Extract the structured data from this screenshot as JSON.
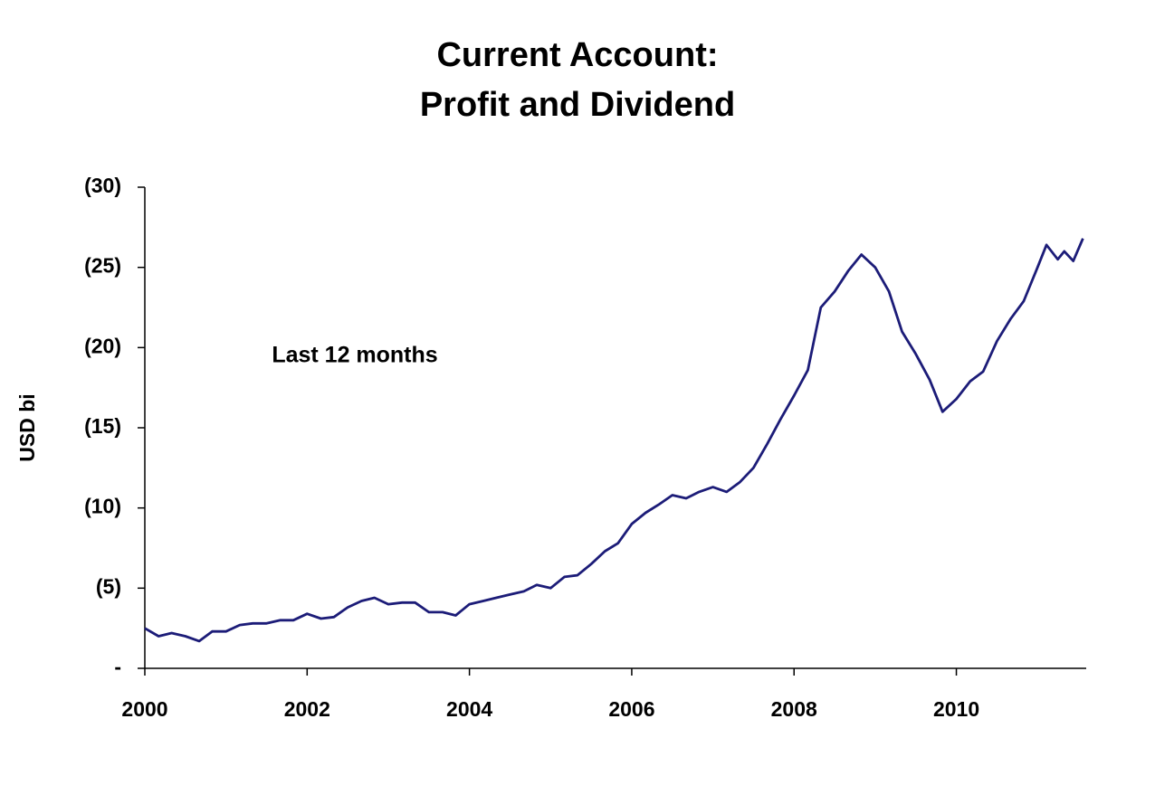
{
  "chart_data": {
    "type": "line",
    "title": "Current Account:",
    "subtitle": "Profit and Dividend",
    "y_label": "USD bi",
    "annotation": "Last 12 months",
    "x": [
      2000,
      2000.17,
      2000.33,
      2000.5,
      2000.67,
      2000.83,
      2001,
      2001.17,
      2001.33,
      2001.5,
      2001.67,
      2001.83,
      2002,
      2002.17,
      2002.33,
      2002.5,
      2002.67,
      2002.83,
      2003,
      2003.17,
      2003.33,
      2003.5,
      2003.67,
      2003.83,
      2004,
      2004.17,
      2004.33,
      2004.5,
      2004.67,
      2004.83,
      2005,
      2005.17,
      2005.33,
      2005.5,
      2005.67,
      2005.83,
      2006,
      2006.17,
      2006.33,
      2006.5,
      2006.67,
      2006.83,
      2007,
      2007.17,
      2007.33,
      2007.5,
      2007.67,
      2007.83,
      2008,
      2008.17,
      2008.33,
      2008.5,
      2008.67,
      2008.83,
      2009,
      2009.17,
      2009.33,
      2009.5,
      2009.67,
      2009.83,
      2010,
      2010.17,
      2010.33,
      2010.5,
      2010.67,
      2010.83,
      2011,
      2011.11,
      2011.25,
      2011.33,
      2011.44,
      2011.56
    ],
    "values": [
      -2.5,
      -2.0,
      -2.2,
      -2.0,
      -1.7,
      -2.3,
      -2.3,
      -2.7,
      -2.8,
      -2.8,
      -3.0,
      -3.0,
      -3.4,
      -3.1,
      -3.2,
      -3.8,
      -4.2,
      -4.4,
      -4.0,
      -4.1,
      -4.1,
      -3.5,
      -3.5,
      -3.3,
      -4.0,
      -4.2,
      -4.4,
      -4.6,
      -4.8,
      -5.2,
      -5.0,
      -5.7,
      -5.8,
      -6.5,
      -7.3,
      -7.8,
      -9.0,
      -9.7,
      -10.2,
      -10.8,
      -10.6,
      -11.0,
      -11.3,
      -11.0,
      -11.6,
      -12.5,
      -14.0,
      -15.5,
      -17.0,
      -18.6,
      -22.5,
      -23.5,
      -24.8,
      -25.8,
      -25.0,
      -23.5,
      -21.0,
      -19.6,
      -18.0,
      -16.0,
      -16.8,
      -17.9,
      -18.5,
      -20.4,
      -21.8,
      -22.9,
      -25.0,
      -26.4,
      -25.5,
      -26.0,
      -25.4,
      -26.8
    ],
    "color": "#1c1c78",
    "xlim": [
      2000,
      2011.6
    ],
    "xticks": [
      2000,
      2002,
      2004,
      2006,
      2008,
      2010
    ],
    "ylim": [
      0,
      -30
    ],
    "yticks": [
      {
        "value": -30,
        "label": "(30)"
      },
      {
        "value": -25,
        "label": "(25)"
      },
      {
        "value": -20,
        "label": "(20)"
      },
      {
        "value": -15,
        "label": "(15)"
      },
      {
        "value": -10,
        "label": "(10)"
      },
      {
        "value": -5,
        "label": "(5)"
      },
      {
        "value": 0,
        "label": "-"
      }
    ],
    "grid": false
  }
}
